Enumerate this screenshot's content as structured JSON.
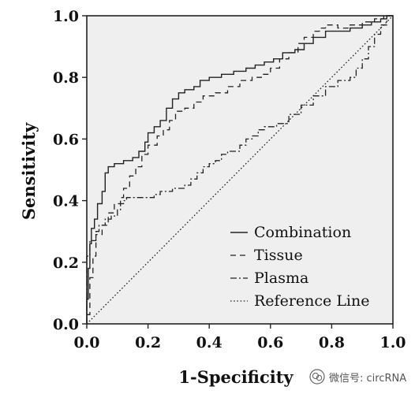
{
  "chart_data": {
    "type": "line",
    "title": "",
    "xlabel": "1-Specificity",
    "ylabel": "Sensitivity",
    "xlim": [
      0,
      1
    ],
    "ylim": [
      0,
      1
    ],
    "x_ticks": [
      "0.0",
      "0.2",
      "0.4",
      "0.6",
      "0.8",
      "1.0"
    ],
    "y_ticks": [
      "0.0",
      "0.2",
      "0.4",
      "0.6",
      "0.8",
      "1.0"
    ],
    "grid": false,
    "legend_position": "bottom-right",
    "background_color": "#efefef",
    "line_color": "#222222",
    "series": [
      {
        "name": "Combination",
        "dash": "solid",
        "points": [
          [
            0,
            0
          ],
          [
            0,
            0.08
          ],
          [
            0.005,
            0.08
          ],
          [
            0.005,
            0.18
          ],
          [
            0.01,
            0.18
          ],
          [
            0.01,
            0.26
          ],
          [
            0.015,
            0.26
          ],
          [
            0.015,
            0.31
          ],
          [
            0.025,
            0.31
          ],
          [
            0.025,
            0.34
          ],
          [
            0.035,
            0.34
          ],
          [
            0.035,
            0.39
          ],
          [
            0.05,
            0.39
          ],
          [
            0.05,
            0.43
          ],
          [
            0.06,
            0.43
          ],
          [
            0.06,
            0.49
          ],
          [
            0.07,
            0.49
          ],
          [
            0.07,
            0.51
          ],
          [
            0.09,
            0.51
          ],
          [
            0.09,
            0.52
          ],
          [
            0.12,
            0.52
          ],
          [
            0.12,
            0.53
          ],
          [
            0.15,
            0.53
          ],
          [
            0.15,
            0.54
          ],
          [
            0.17,
            0.54
          ],
          [
            0.17,
            0.56
          ],
          [
            0.19,
            0.56
          ],
          [
            0.19,
            0.59
          ],
          [
            0.2,
            0.59
          ],
          [
            0.2,
            0.62
          ],
          [
            0.22,
            0.62
          ],
          [
            0.22,
            0.64
          ],
          [
            0.24,
            0.64
          ],
          [
            0.24,
            0.66
          ],
          [
            0.26,
            0.66
          ],
          [
            0.26,
            0.7
          ],
          [
            0.28,
            0.7
          ],
          [
            0.28,
            0.73
          ],
          [
            0.3,
            0.73
          ],
          [
            0.3,
            0.75
          ],
          [
            0.32,
            0.75
          ],
          [
            0.32,
            0.76
          ],
          [
            0.35,
            0.76
          ],
          [
            0.35,
            0.77
          ],
          [
            0.37,
            0.77
          ],
          [
            0.37,
            0.79
          ],
          [
            0.4,
            0.79
          ],
          [
            0.4,
            0.8
          ],
          [
            0.44,
            0.8
          ],
          [
            0.44,
            0.81
          ],
          [
            0.48,
            0.81
          ],
          [
            0.48,
            0.82
          ],
          [
            0.52,
            0.82
          ],
          [
            0.52,
            0.83
          ],
          [
            0.55,
            0.83
          ],
          [
            0.55,
            0.84
          ],
          [
            0.58,
            0.84
          ],
          [
            0.58,
            0.85
          ],
          [
            0.61,
            0.85
          ],
          [
            0.61,
            0.86
          ],
          [
            0.64,
            0.86
          ],
          [
            0.64,
            0.88
          ],
          [
            0.68,
            0.88
          ],
          [
            0.68,
            0.89
          ],
          [
            0.71,
            0.89
          ],
          [
            0.71,
            0.91
          ],
          [
            0.74,
            0.91
          ],
          [
            0.74,
            0.93
          ],
          [
            0.78,
            0.93
          ],
          [
            0.78,
            0.95
          ],
          [
            0.86,
            0.95
          ],
          [
            0.86,
            0.96
          ],
          [
            0.9,
            0.96
          ],
          [
            0.9,
            0.97
          ],
          [
            0.93,
            0.97
          ],
          [
            0.93,
            0.98
          ],
          [
            0.96,
            0.98
          ],
          [
            0.96,
            0.99
          ],
          [
            0.98,
            0.99
          ],
          [
            0.98,
            1
          ],
          [
            1,
            1
          ]
        ]
      },
      {
        "name": "Tissue",
        "dash": "dashed",
        "points": [
          [
            0,
            0
          ],
          [
            0,
            0.03
          ],
          [
            0.01,
            0.03
          ],
          [
            0.01,
            0.15
          ],
          [
            0.02,
            0.15
          ],
          [
            0.02,
            0.22
          ],
          [
            0.03,
            0.22
          ],
          [
            0.03,
            0.29
          ],
          [
            0.05,
            0.29
          ],
          [
            0.05,
            0.32
          ],
          [
            0.07,
            0.32
          ],
          [
            0.07,
            0.36
          ],
          [
            0.09,
            0.36
          ],
          [
            0.09,
            0.39
          ],
          [
            0.11,
            0.39
          ],
          [
            0.11,
            0.41
          ],
          [
            0.12,
            0.41
          ],
          [
            0.12,
            0.44
          ],
          [
            0.14,
            0.44
          ],
          [
            0.14,
            0.48
          ],
          [
            0.16,
            0.48
          ],
          [
            0.16,
            0.51
          ],
          [
            0.18,
            0.51
          ],
          [
            0.18,
            0.55
          ],
          [
            0.2,
            0.55
          ],
          [
            0.2,
            0.58
          ],
          [
            0.23,
            0.58
          ],
          [
            0.23,
            0.61
          ],
          [
            0.25,
            0.61
          ],
          [
            0.25,
            0.63
          ],
          [
            0.27,
            0.63
          ],
          [
            0.27,
            0.66
          ],
          [
            0.29,
            0.66
          ],
          [
            0.29,
            0.69
          ],
          [
            0.32,
            0.69
          ],
          [
            0.32,
            0.7
          ],
          [
            0.35,
            0.7
          ],
          [
            0.35,
            0.72
          ],
          [
            0.38,
            0.72
          ],
          [
            0.38,
            0.74
          ],
          [
            0.42,
            0.74
          ],
          [
            0.42,
            0.75
          ],
          [
            0.46,
            0.75
          ],
          [
            0.46,
            0.77
          ],
          [
            0.5,
            0.77
          ],
          [
            0.5,
            0.79
          ],
          [
            0.54,
            0.79
          ],
          [
            0.54,
            0.8
          ],
          [
            0.57,
            0.8
          ],
          [
            0.57,
            0.81
          ],
          [
            0.6,
            0.81
          ],
          [
            0.6,
            0.83
          ],
          [
            0.63,
            0.83
          ],
          [
            0.63,
            0.86
          ],
          [
            0.66,
            0.86
          ],
          [
            0.66,
            0.88
          ],
          [
            0.69,
            0.88
          ],
          [
            0.69,
            0.91
          ],
          [
            0.71,
            0.91
          ],
          [
            0.71,
            0.93
          ],
          [
            0.74,
            0.93
          ],
          [
            0.74,
            0.95
          ],
          [
            0.76,
            0.95
          ],
          [
            0.76,
            0.96
          ],
          [
            0.78,
            0.96
          ],
          [
            0.78,
            0.97
          ],
          [
            0.82,
            0.97
          ],
          [
            0.82,
            0.96
          ],
          [
            0.86,
            0.96
          ],
          [
            0.86,
            0.97
          ],
          [
            0.9,
            0.97
          ],
          [
            0.9,
            0.98
          ],
          [
            0.94,
            0.98
          ],
          [
            0.94,
            0.99
          ],
          [
            0.97,
            0.99
          ],
          [
            0.97,
            1
          ],
          [
            1,
            1
          ]
        ]
      },
      {
        "name": "Plasma",
        "dash": "dash-dot",
        "points": [
          [
            0,
            0
          ],
          [
            0,
            0.22
          ],
          [
            0.01,
            0.22
          ],
          [
            0.01,
            0.27
          ],
          [
            0.03,
            0.27
          ],
          [
            0.03,
            0.3
          ],
          [
            0.04,
            0.3
          ],
          [
            0.04,
            0.32
          ],
          [
            0.06,
            0.32
          ],
          [
            0.06,
            0.34
          ],
          [
            0.08,
            0.34
          ],
          [
            0.08,
            0.35
          ],
          [
            0.1,
            0.35
          ],
          [
            0.1,
            0.37
          ],
          [
            0.11,
            0.37
          ],
          [
            0.11,
            0.39
          ],
          [
            0.12,
            0.39
          ],
          [
            0.12,
            0.4
          ],
          [
            0.13,
            0.4
          ],
          [
            0.13,
            0.41
          ],
          [
            0.22,
            0.41
          ],
          [
            0.22,
            0.42
          ],
          [
            0.24,
            0.42
          ],
          [
            0.24,
            0.43
          ],
          [
            0.28,
            0.43
          ],
          [
            0.28,
            0.44
          ],
          [
            0.32,
            0.44
          ],
          [
            0.32,
            0.45
          ],
          [
            0.34,
            0.45
          ],
          [
            0.34,
            0.47
          ],
          [
            0.36,
            0.47
          ],
          [
            0.36,
            0.49
          ],
          [
            0.38,
            0.49
          ],
          [
            0.38,
            0.51
          ],
          [
            0.4,
            0.51
          ],
          [
            0.4,
            0.52
          ],
          [
            0.42,
            0.52
          ],
          [
            0.42,
            0.53
          ],
          [
            0.44,
            0.53
          ],
          [
            0.44,
            0.55
          ],
          [
            0.46,
            0.55
          ],
          [
            0.46,
            0.56
          ],
          [
            0.5,
            0.56
          ],
          [
            0.5,
            0.58
          ],
          [
            0.52,
            0.58
          ],
          [
            0.52,
            0.6
          ],
          [
            0.54,
            0.6
          ],
          [
            0.54,
            0.61
          ],
          [
            0.56,
            0.61
          ],
          [
            0.56,
            0.63
          ],
          [
            0.58,
            0.63
          ],
          [
            0.58,
            0.64
          ],
          [
            0.62,
            0.64
          ],
          [
            0.62,
            0.65
          ],
          [
            0.66,
            0.65
          ],
          [
            0.66,
            0.68
          ],
          [
            0.7,
            0.68
          ],
          [
            0.7,
            0.71
          ],
          [
            0.74,
            0.71
          ],
          [
            0.74,
            0.74
          ],
          [
            0.78,
            0.74
          ],
          [
            0.78,
            0.77
          ],
          [
            0.82,
            0.77
          ],
          [
            0.82,
            0.79
          ],
          [
            0.86,
            0.79
          ],
          [
            0.86,
            0.8
          ],
          [
            0.88,
            0.8
          ],
          [
            0.88,
            0.83
          ],
          [
            0.9,
            0.83
          ],
          [
            0.9,
            0.86
          ],
          [
            0.92,
            0.86
          ],
          [
            0.92,
            0.9
          ],
          [
            0.94,
            0.9
          ],
          [
            0.94,
            0.94
          ],
          [
            0.96,
            0.94
          ],
          [
            0.96,
            0.97
          ],
          [
            0.98,
            0.97
          ],
          [
            0.98,
            1
          ],
          [
            1,
            1
          ]
        ]
      },
      {
        "name": "Reference Line",
        "dash": "dotted",
        "points": [
          [
            0,
            0
          ],
          [
            1,
            1
          ]
        ]
      }
    ]
  },
  "watermark": {
    "icon": "wechat-icon",
    "text": "微信号: circRNA"
  }
}
